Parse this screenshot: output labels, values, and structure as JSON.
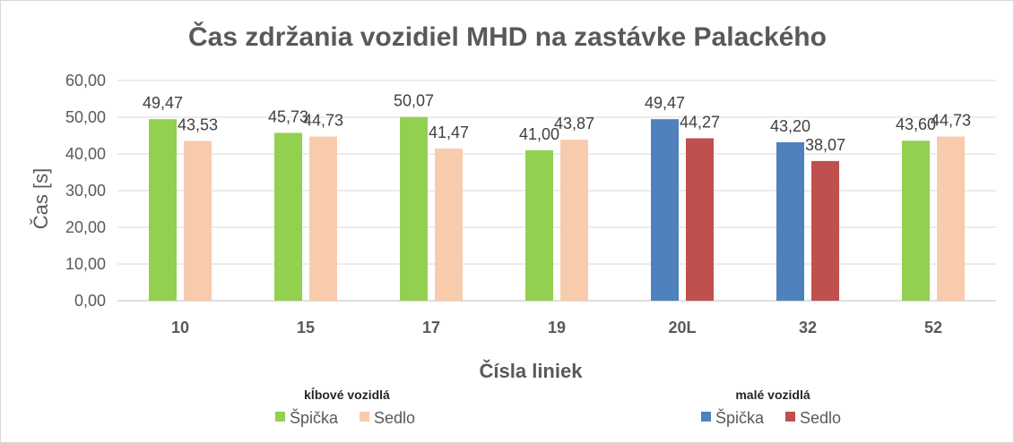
{
  "chart_data": {
    "type": "bar",
    "title": "Čas zdržania vozidiel MHD na zastávke Palackého",
    "xlabel": "Čísla liniek",
    "ylabel": "Čas [s]",
    "ylim": [
      0,
      60
    ],
    "yticks": [
      "0,00",
      "10,00",
      "20,00",
      "30,00",
      "40,00",
      "50,00",
      "60,00"
    ],
    "grid": true,
    "legend_placement": "bottom",
    "categories": [
      "10",
      "15",
      "17",
      "19",
      "20L",
      "32",
      "52"
    ],
    "vehicle_group": [
      "kĺbové",
      "kĺbové",
      "kĺbové",
      "kĺbové",
      "malé",
      "malé",
      "kĺbové"
    ],
    "series": [
      {
        "name": "Špička",
        "values": [
          49.47,
          45.73,
          50.07,
          41.0,
          49.47,
          43.2,
          43.6
        ],
        "labels": [
          "49,47",
          "45,73",
          "50,07",
          "41,00",
          "49,47",
          "43,20",
          "43,60"
        ]
      },
      {
        "name": "Sedlo",
        "values": [
          43.53,
          44.73,
          41.47,
          43.87,
          44.27,
          38.07,
          44.73
        ],
        "labels": [
          "43,53",
          "44,73",
          "41,47",
          "43,87",
          "44,27",
          "38,07",
          "44,73"
        ]
      }
    ],
    "legend_groups": [
      {
        "heading": "kĺbové vozidlá",
        "group": "kĺbové",
        "entries": [
          {
            "label": "Špička",
            "color": "#92d050"
          },
          {
            "label": "Sedlo",
            "color": "#f8cbad"
          }
        ]
      },
      {
        "heading": "malé vozidlá",
        "group": "malé",
        "entries": [
          {
            "label": "Špička",
            "color": "#4f81bd"
          },
          {
            "label": "Sedlo",
            "color": "#c0504d"
          }
        ]
      }
    ],
    "colors": {
      "kĺbové": {
        "Špička": "#92d050",
        "Sedlo": "#f8cbad"
      },
      "malé": {
        "Špička": "#4f81bd",
        "Sedlo": "#c0504d"
      },
      "grid": "#d9d9d9",
      "axis": "#bfbfbf"
    }
  }
}
